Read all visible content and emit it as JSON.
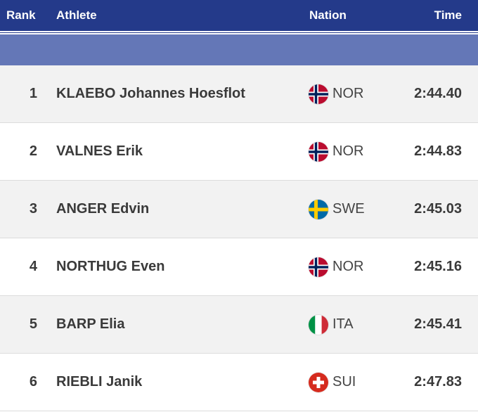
{
  "header": {
    "rank_label": "Rank",
    "athlete_label": "Athlete",
    "nation_label": "Nation",
    "time_label": "Time"
  },
  "colors": {
    "header_bg": "#243a8a",
    "subheader_bg": "#6477b7",
    "time_text": "#243a8a"
  },
  "results": [
    {
      "rank": "1",
      "athlete": "KLAEBO Johannes Hoesflot",
      "nation": "NOR",
      "flag": "norway-flag-icon",
      "time": "2:44.40"
    },
    {
      "rank": "2",
      "athlete": "VALNES Erik",
      "nation": "NOR",
      "flag": "norway-flag-icon",
      "time": "2:44.83"
    },
    {
      "rank": "3",
      "athlete": "ANGER Edvin",
      "nation": "SWE",
      "flag": "sweden-flag-icon",
      "time": "2:45.03"
    },
    {
      "rank": "4",
      "athlete": "NORTHUG Even",
      "nation": "NOR",
      "flag": "norway-flag-icon",
      "time": "2:45.16"
    },
    {
      "rank": "5",
      "athlete": "BARP Elia",
      "nation": "ITA",
      "flag": "italy-flag-icon",
      "time": "2:45.41"
    },
    {
      "rank": "6",
      "athlete": "RIEBLI Janik",
      "nation": "SUI",
      "flag": "switzerland-flag-icon",
      "time": "2:47.83"
    }
  ]
}
